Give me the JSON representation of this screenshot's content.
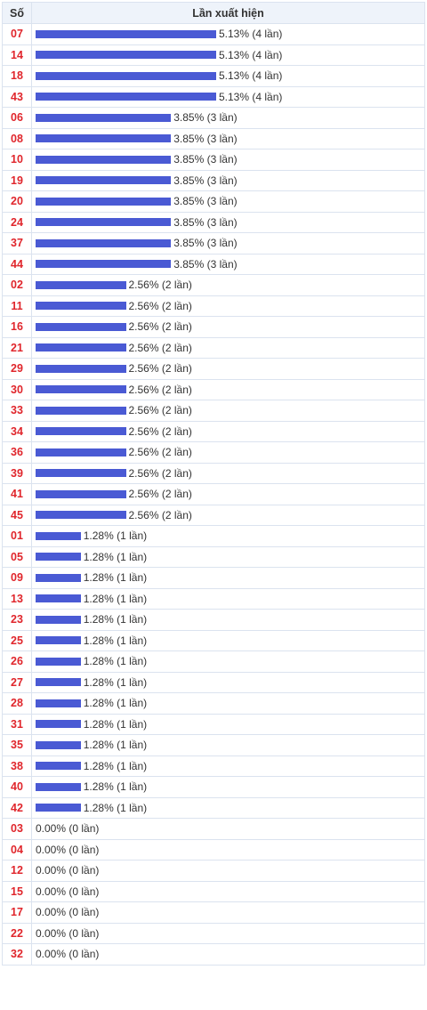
{
  "header": {
    "col_number": "Số",
    "col_frequency": "Lần xuất hiện"
  },
  "theme": {
    "bar_color": "#4a5ad4",
    "number_color": "#e0262c",
    "header_bg": "#eef3fa",
    "border_color": "#dbe3ef"
  },
  "chart_data": {
    "type": "bar",
    "orientation": "horizontal",
    "categories": [
      "07",
      "14",
      "18",
      "43",
      "06",
      "08",
      "10",
      "19",
      "20",
      "24",
      "37",
      "44",
      "02",
      "11",
      "16",
      "21",
      "29",
      "30",
      "33",
      "34",
      "36",
      "39",
      "41",
      "45",
      "01",
      "05",
      "09",
      "13",
      "23",
      "25",
      "26",
      "27",
      "28",
      "31",
      "35",
      "38",
      "40",
      "42",
      "03",
      "04",
      "12",
      "15",
      "17",
      "22",
      "32"
    ],
    "values": [
      4,
      4,
      4,
      4,
      3,
      3,
      3,
      3,
      3,
      3,
      3,
      3,
      2,
      2,
      2,
      2,
      2,
      2,
      2,
      2,
      2,
      2,
      2,
      2,
      1,
      1,
      1,
      1,
      1,
      1,
      1,
      1,
      1,
      1,
      1,
      1,
      1,
      1,
      0,
      0,
      0,
      0,
      0,
      0,
      0
    ],
    "labels": [
      "5.13% (4 lần)",
      "5.13% (4 lần)",
      "5.13% (4 lần)",
      "5.13% (4 lần)",
      "3.85% (3 lần)",
      "3.85% (3 lần)",
      "3.85% (3 lần)",
      "3.85% (3 lần)",
      "3.85% (3 lần)",
      "3.85% (3 lần)",
      "3.85% (3 lần)",
      "3.85% (3 lần)",
      "2.56% (2 lần)",
      "2.56% (2 lần)",
      "2.56% (2 lần)",
      "2.56% (2 lần)",
      "2.56% (2 lần)",
      "2.56% (2 lần)",
      "2.56% (2 lần)",
      "2.56% (2 lần)",
      "2.56% (2 lần)",
      "2.56% (2 lần)",
      "2.56% (2 lần)",
      "2.56% (2 lần)",
      "1.28% (1 lần)",
      "1.28% (1 lần)",
      "1.28% (1 lần)",
      "1.28% (1 lần)",
      "1.28% (1 lần)",
      "1.28% (1 lần)",
      "1.28% (1 lần)",
      "1.28% (1 lần)",
      "1.28% (1 lần)",
      "1.28% (1 lần)",
      "1.28% (1 lần)",
      "1.28% (1 lần)",
      "1.28% (1 lần)",
      "1.28% (1 lần)",
      "0.00% (0 lần)",
      "0.00% (0 lần)",
      "0.00% (0 lần)",
      "0.00% (0 lần)",
      "0.00% (0 lần)",
      "0.00% (0 lần)",
      "0.00% (0 lần)"
    ],
    "xlim": [
      0,
      4
    ],
    "grid": false,
    "legend": "none"
  }
}
